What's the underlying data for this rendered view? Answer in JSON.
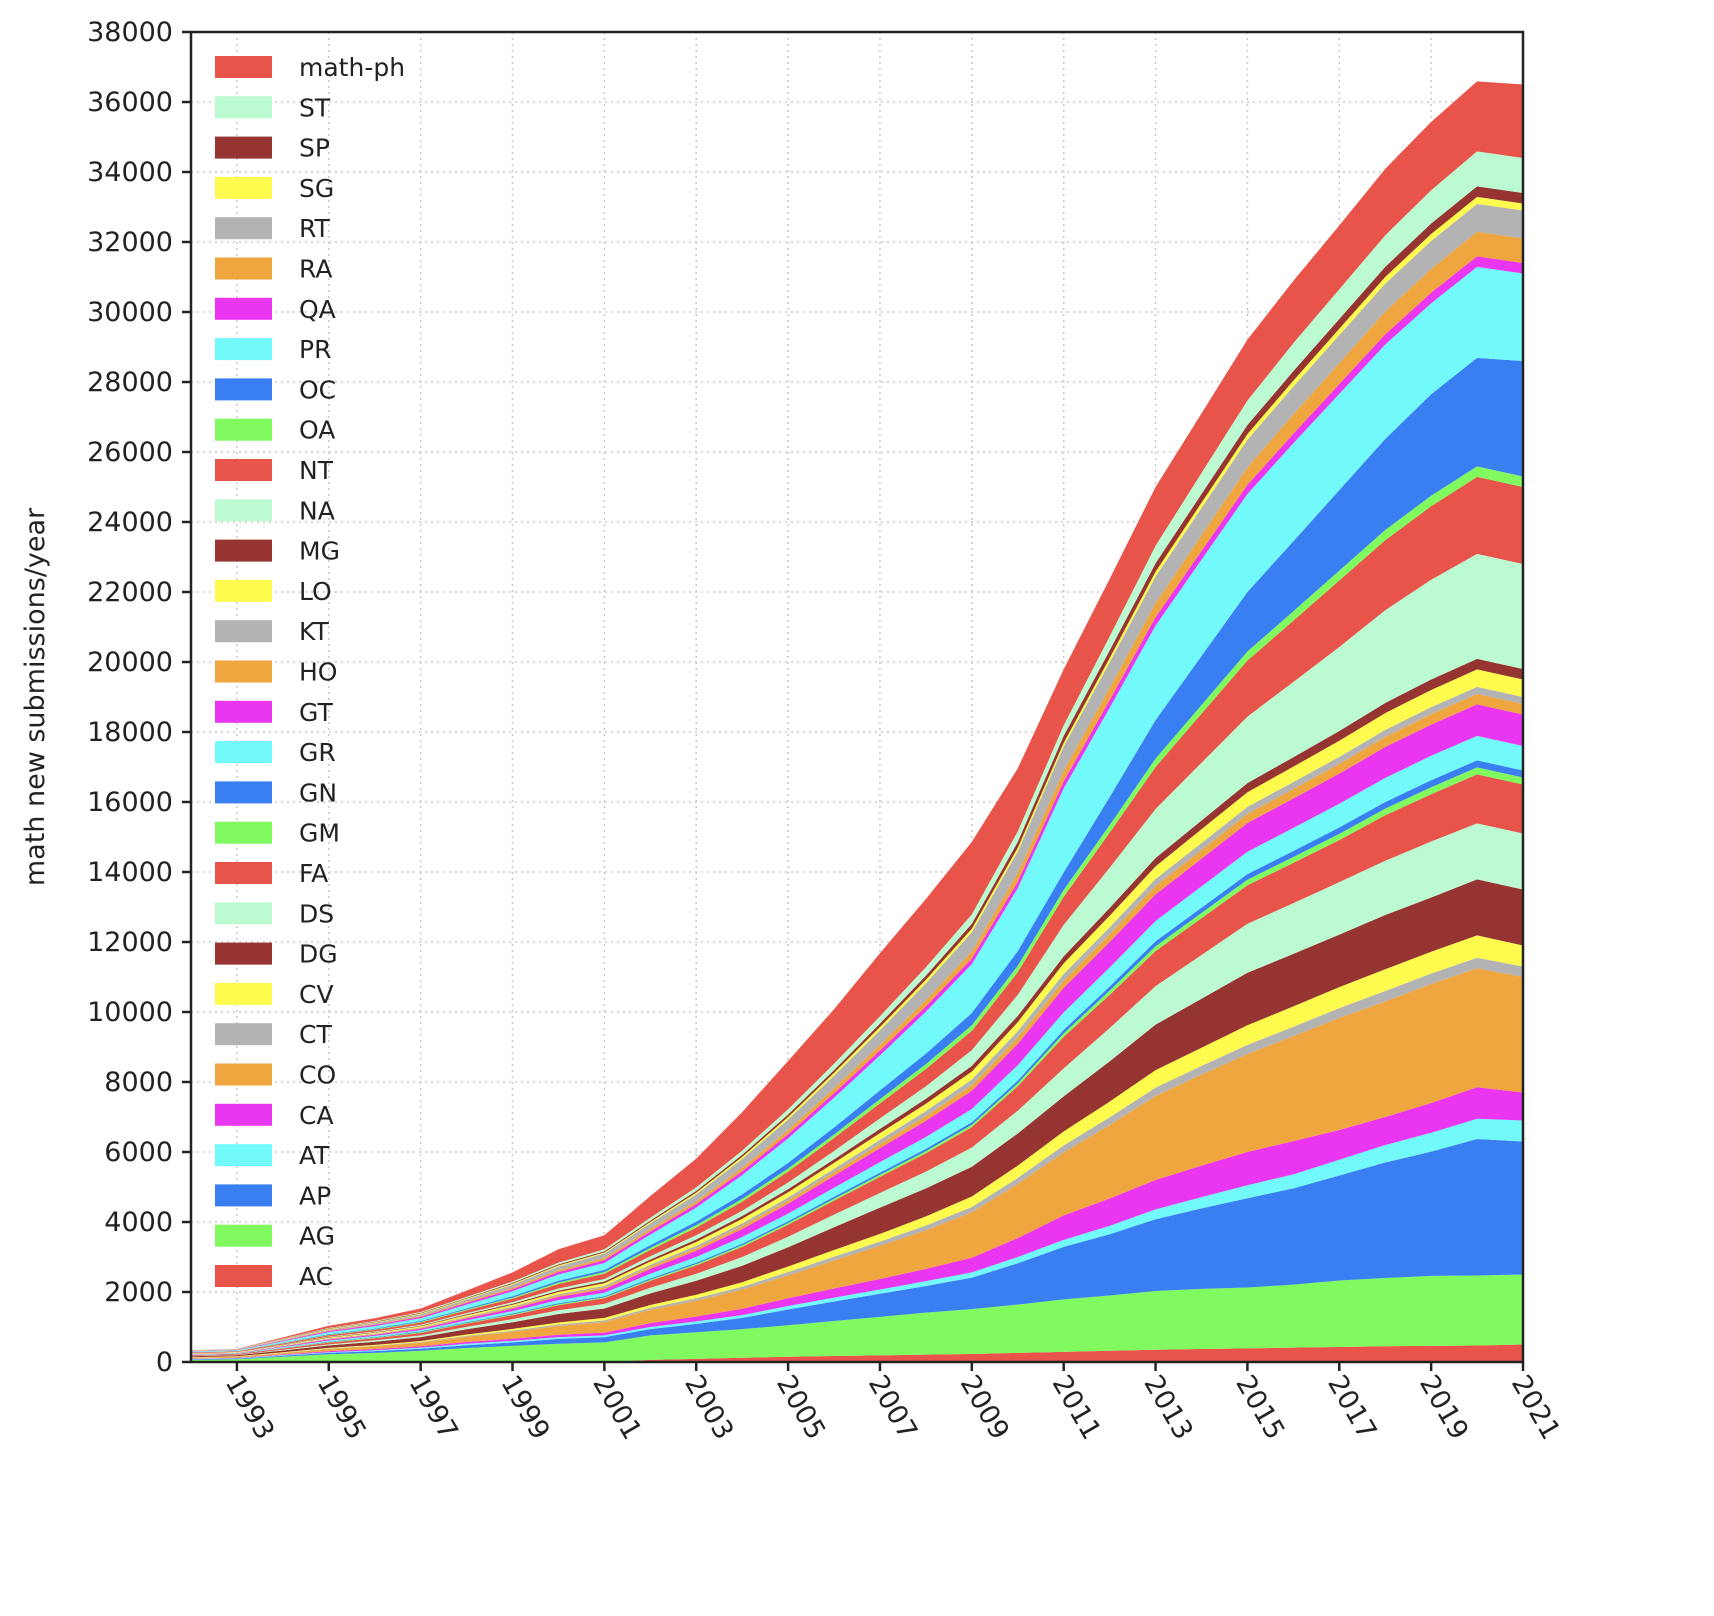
{
  "chart_data": {
    "type": "area",
    "stacked": true,
    "title": "",
    "xlabel": "",
    "ylabel": "math new submissions/year",
    "xlim": [
      1992,
      2021
    ],
    "ylim": [
      0,
      38000
    ],
    "grid": true,
    "legend_position": "top-left",
    "x_tick_labels": [
      "1993",
      "1995",
      "1997",
      "1999",
      "2001",
      "2003",
      "2005",
      "2007",
      "2009",
      "2011",
      "2013",
      "2015",
      "2017",
      "2019",
      "2021"
    ],
    "x_ticks": [
      1993,
      1995,
      1997,
      1999,
      2001,
      2003,
      2005,
      2007,
      2009,
      2011,
      2013,
      2015,
      2017,
      2019,
      2021
    ],
    "y_ticks": [
      0,
      2000,
      4000,
      6000,
      8000,
      10000,
      12000,
      14000,
      16000,
      18000,
      20000,
      22000,
      24000,
      26000,
      28000,
      30000,
      32000,
      34000,
      36000,
      38000
    ],
    "y_tick_labels": [
      "0",
      "2000",
      "4000",
      "6000",
      "8000",
      "10000",
      "12000",
      "14000",
      "16000",
      "18000",
      "20000",
      "22000",
      "24000",
      "26000",
      "28000",
      "30000",
      "32000",
      "34000",
      "36000",
      "38000"
    ],
    "x": [
      1992,
      1993,
      1994,
      1995,
      1996,
      1997,
      1998,
      1999,
      2000,
      2001,
      2002,
      2003,
      2004,
      2005,
      2006,
      2007,
      2008,
      2009,
      2010,
      2011,
      2012,
      2013,
      2014,
      2015,
      2016,
      2017,
      2018,
      2019,
      2020,
      2021
    ],
    "series": [
      {
        "name": "AC",
        "color": "#e8534a",
        "values": [
          0,
          0,
          0,
          0,
          0,
          0,
          0,
          0,
          0,
          0,
          60,
          90,
          120,
          150,
          170,
          190,
          210,
          230,
          260,
          290,
          320,
          350,
          370,
          390,
          410,
          430,
          450,
          460,
          470,
          500
        ]
      },
      {
        "name": "AG",
        "color": "#80fa5f",
        "values": [
          60,
          80,
          150,
          220,
          260,
          320,
          400,
          460,
          520,
          560,
          700,
          760,
          820,
          900,
          1000,
          1100,
          1200,
          1280,
          1380,
          1500,
          1580,
          1680,
          1720,
          1740,
          1800,
          1900,
          1950,
          2000,
          2000,
          2000
        ]
      },
      {
        "name": "AP",
        "color": "#3a7ff2",
        "values": [
          20,
          20,
          30,
          40,
          50,
          60,
          80,
          100,
          140,
          150,
          180,
          240,
          320,
          450,
          560,
          660,
          760,
          900,
          1180,
          1500,
          1750,
          2050,
          2300,
          2550,
          2750,
          3000,
          3300,
          3550,
          3900,
          3800
        ]
      },
      {
        "name": "AT",
        "color": "#72fafa",
        "values": [
          10,
          10,
          15,
          20,
          25,
          30,
          40,
          45,
          50,
          50,
          60,
          70,
          80,
          100,
          110,
          120,
          140,
          150,
          180,
          200,
          240,
          280,
          320,
          370,
          400,
          450,
          500,
          540,
          580,
          600
        ]
      },
      {
        "name": "CA",
        "color": "#ea35f1",
        "values": [
          10,
          10,
          20,
          30,
          35,
          40,
          50,
          60,
          70,
          80,
          110,
          140,
          180,
          220,
          260,
          300,
          350,
          420,
          540,
          700,
          780,
          840,
          900,
          950,
          950,
          850,
          800,
          850,
          900,
          800
        ]
      },
      {
        "name": "CO",
        "color": "#f0a63e",
        "values": [
          20,
          30,
          40,
          60,
          80,
          100,
          150,
          200,
          250,
          300,
          380,
          450,
          550,
          650,
          800,
          950,
          1100,
          1300,
          1550,
          1800,
          2100,
          2400,
          2600,
          2800,
          3000,
          3200,
          3300,
          3400,
          3400,
          3300
        ]
      },
      {
        "name": "CT",
        "color": "#b3b3b3",
        "values": [
          5,
          5,
          10,
          15,
          15,
          20,
          25,
          30,
          40,
          50,
          60,
          70,
          80,
          100,
          110,
          120,
          140,
          150,
          170,
          200,
          220,
          240,
          250,
          260,
          270,
          280,
          300,
          300,
          300,
          300
        ]
      },
      {
        "name": "CV",
        "color": "#fdfb4e",
        "values": [
          10,
          10,
          15,
          20,
          25,
          30,
          40,
          50,
          60,
          70,
          80,
          100,
          130,
          160,
          190,
          220,
          260,
          300,
          350,
          400,
          450,
          500,
          520,
          560,
          580,
          600,
          620,
          620,
          640,
          600
        ]
      },
      {
        "name": "DG",
        "color": "#963431",
        "values": [
          30,
          30,
          50,
          70,
          90,
          110,
          150,
          190,
          240,
          270,
          330,
          400,
          470,
          550,
          650,
          750,
          800,
          850,
          920,
          1000,
          1150,
          1300,
          1400,
          1500,
          1500,
          1500,
          1550,
          1550,
          1600,
          1600
        ]
      },
      {
        "name": "DS",
        "color": "#bcfad2",
        "values": [
          10,
          10,
          20,
          30,
          40,
          50,
          70,
          90,
          110,
          130,
          160,
          200,
          250,
          300,
          360,
          420,
          480,
          550,
          650,
          800,
          950,
          1100,
          1250,
          1400,
          1450,
          1500,
          1550,
          1600,
          1600,
          1600
        ]
      },
      {
        "name": "FA",
        "color": "#e8534a",
        "values": [
          20,
          20,
          35,
          50,
          60,
          70,
          90,
          110,
          140,
          160,
          200,
          240,
          290,
          340,
          400,
          460,
          520,
          580,
          700,
          900,
          950,
          1000,
          1050,
          1100,
          1150,
          1200,
          1300,
          1350,
          1400,
          1400
        ]
      },
      {
        "name": "GM",
        "color": "#80fa5f",
        "values": [
          5,
          5,
          10,
          15,
          15,
          20,
          20,
          25,
          30,
          30,
          35,
          40,
          45,
          50,
          55,
          60,
          65,
          70,
          80,
          100,
          120,
          140,
          150,
          160,
          170,
          180,
          190,
          200,
          200,
          200
        ]
      },
      {
        "name": "GN",
        "color": "#3a7ff2",
        "values": [
          5,
          5,
          10,
          15,
          15,
          20,
          20,
          25,
          30,
          30,
          35,
          40,
          45,
          50,
          55,
          60,
          65,
          70,
          80,
          100,
          120,
          140,
          150,
          160,
          170,
          180,
          190,
          200,
          200,
          200
        ]
      },
      {
        "name": "GR",
        "color": "#72fafa",
        "values": [
          10,
          10,
          20,
          30,
          35,
          40,
          55,
          70,
          90,
          100,
          130,
          160,
          190,
          220,
          260,
          300,
          340,
          380,
          440,
          500,
          540,
          580,
          610,
          640,
          660,
          680,
          690,
          700,
          700,
          700
        ]
      },
      {
        "name": "GT",
        "color": "#ea35f1",
        "values": [
          10,
          10,
          20,
          30,
          35,
          40,
          55,
          70,
          90,
          100,
          140,
          180,
          230,
          280,
          340,
          400,
          460,
          520,
          610,
          700,
          730,
          760,
          790,
          820,
          840,
          860,
          880,
          890,
          900,
          900
        ]
      },
      {
        "name": "HO",
        "color": "#f0a63e",
        "values": [
          5,
          5,
          10,
          15,
          15,
          20,
          25,
          30,
          40,
          50,
          60,
          70,
          80,
          90,
          100,
          120,
          140,
          160,
          180,
          200,
          220,
          240,
          250,
          260,
          270,
          280,
          290,
          300,
          300,
          300
        ]
      },
      {
        "name": "KT",
        "color": "#b3b3b3",
        "values": [
          5,
          5,
          10,
          15,
          15,
          20,
          25,
          30,
          40,
          50,
          60,
          70,
          80,
          90,
          100,
          120,
          140,
          160,
          180,
          200,
          200,
          200,
          200,
          200,
          200,
          200,
          200,
          200,
          200,
          200
        ]
      },
      {
        "name": "LO",
        "color": "#fdfb4e",
        "values": [
          10,
          10,
          15,
          20,
          25,
          30,
          40,
          50,
          60,
          70,
          90,
          110,
          130,
          150,
          170,
          190,
          210,
          230,
          260,
          300,
          330,
          360,
          390,
          420,
          440,
          460,
          480,
          490,
          500,
          500
        ]
      },
      {
        "name": "MG",
        "color": "#963431",
        "values": [
          5,
          5,
          10,
          15,
          15,
          20,
          25,
          30,
          40,
          50,
          60,
          70,
          80,
          90,
          100,
          120,
          140,
          160,
          180,
          200,
          220,
          240,
          250,
          260,
          270,
          280,
          290,
          300,
          300,
          300
        ]
      },
      {
        "name": "NA",
        "color": "#bcfad2",
        "values": [
          5,
          5,
          10,
          15,
          20,
          25,
          35,
          45,
          60,
          70,
          90,
          120,
          150,
          190,
          240,
          300,
          360,
          450,
          600,
          900,
          1150,
          1400,
          1650,
          1900,
          2150,
          2400,
          2650,
          2850,
          3000,
          3000
        ]
      },
      {
        "name": "NT",
        "color": "#e8534a",
        "values": [
          20,
          20,
          30,
          40,
          50,
          60,
          80,
          100,
          130,
          150,
          180,
          220,
          260,
          310,
          370,
          430,
          490,
          550,
          650,
          800,
          1000,
          1200,
          1400,
          1600,
          1750,
          1900,
          2000,
          2100,
          2200,
          2200
        ]
      },
      {
        "name": "OA",
        "color": "#80fa5f",
        "values": [
          5,
          5,
          10,
          15,
          15,
          20,
          25,
          30,
          40,
          50,
          60,
          70,
          80,
          90,
          100,
          120,
          140,
          160,
          180,
          200,
          220,
          240,
          250,
          260,
          270,
          280,
          290,
          300,
          300,
          300
        ]
      },
      {
        "name": "OC",
        "color": "#3a7ff2",
        "values": [
          5,
          5,
          10,
          15,
          20,
          25,
          30,
          40,
          50,
          60,
          80,
          100,
          130,
          160,
          200,
          250,
          300,
          350,
          420,
          500,
          800,
          1100,
          1400,
          1700,
          2000,
          2300,
          2600,
          2900,
          3100,
          3300
        ]
      },
      {
        "name": "PR",
        "color": "#72fafa",
        "values": [
          20,
          20,
          40,
          60,
          70,
          80,
          110,
          140,
          180,
          200,
          300,
          400,
          550,
          700,
          850,
          1000,
          1200,
          1400,
          1800,
          2400,
          2550,
          2700,
          2750,
          2800,
          2800,
          2750,
          2700,
          2600,
          2600,
          2500
        ]
      },
      {
        "name": "QA",
        "color": "#ea35f1",
        "values": [
          10,
          10,
          20,
          30,
          35,
          40,
          50,
          60,
          70,
          80,
          90,
          100,
          110,
          120,
          130,
          140,
          150,
          160,
          180,
          200,
          220,
          240,
          250,
          260,
          270,
          280,
          290,
          300,
          300,
          300
        ]
      },
      {
        "name": "RA",
        "color": "#f0a63e",
        "values": [
          5,
          5,
          10,
          15,
          20,
          25,
          30,
          40,
          50,
          60,
          70,
          80,
          100,
          120,
          140,
          160,
          180,
          200,
          250,
          300,
          350,
          400,
          450,
          500,
          550,
          600,
          650,
          680,
          700,
          700
        ]
      },
      {
        "name": "RT",
        "color": "#b3b3b3",
        "values": [
          10,
          10,
          20,
          30,
          40,
          50,
          70,
          90,
          110,
          130,
          160,
          200,
          250,
          300,
          360,
          420,
          480,
          550,
          620,
          700,
          730,
          760,
          780,
          790,
          800,
          800,
          800,
          800,
          800,
          800
        ]
      },
      {
        "name": "SG",
        "color": "#fdfb4e",
        "values": [
          5,
          5,
          10,
          15,
          15,
          20,
          20,
          25,
          30,
          30,
          40,
          50,
          60,
          70,
          80,
          90,
          100,
          100,
          100,
          100,
          120,
          140,
          150,
          160,
          170,
          180,
          190,
          200,
          200,
          200
        ]
      },
      {
        "name": "SP",
        "color": "#963431",
        "values": [
          5,
          5,
          10,
          15,
          15,
          20,
          20,
          25,
          30,
          30,
          40,
          50,
          60,
          70,
          80,
          100,
          120,
          140,
          170,
          200,
          220,
          240,
          250,
          260,
          270,
          280,
          290,
          300,
          300,
          300
        ]
      },
      {
        "name": "ST",
        "color": "#bcfad2",
        "values": [
          5,
          5,
          10,
          15,
          20,
          25,
          30,
          40,
          50,
          60,
          80,
          100,
          120,
          150,
          180,
          210,
          240,
          270,
          300,
          300,
          400,
          500,
          600,
          700,
          800,
          850,
          900,
          950,
          1000,
          1000
        ]
      },
      {
        "name": "math-ph",
        "color": "#e8534a",
        "values": [
          0,
          0,
          35,
          60,
          80,
          100,
          180,
          260,
          380,
          400,
          620,
          820,
          1100,
          1380,
          1560,
          1800,
          1950,
          2070,
          1800,
          1600,
          1640,
          1680,
          1700,
          1740,
          1780,
          1820,
          1900,
          1950,
          2000,
          2100
        ]
      }
    ]
  }
}
